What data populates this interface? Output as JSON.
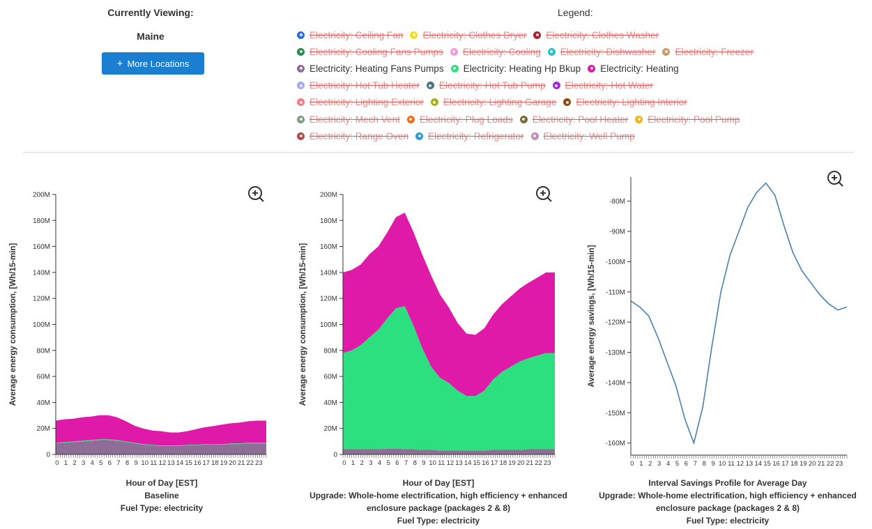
{
  "header": {
    "viewing_label": "Currently Viewing:",
    "location": "Maine",
    "more_locations_label": "More Locations",
    "more_locations_icon": "plus-icon",
    "accent_color": "#1a7fd1"
  },
  "legend": {
    "title": "Legend:",
    "rows": [
      [
        {
          "label": "Electricity: Ceiling Fan",
          "color": "#2a6fdb",
          "active": false
        },
        {
          "label": "Electricity: Clothes Dryer",
          "color": "#f2de1b",
          "active": false
        },
        {
          "label": "Electricity: Clothes Washer",
          "color": "#b01e2e",
          "active": false
        }
      ],
      [
        {
          "label": "Electricity: Cooling Fans Pumps",
          "color": "#2b8a4a",
          "active": false
        },
        {
          "label": "Electricity: Cooling",
          "color": "#f49ad8",
          "active": false
        },
        {
          "label": "Electricity: Dishwasher",
          "color": "#2bbfc9",
          "active": false
        },
        {
          "label": "Electricity: Freezer",
          "color": "#c99a6a",
          "active": false
        }
      ],
      [
        {
          "label": "Electricity: Heating Fans Pumps",
          "color": "#8e6e96",
          "active": true
        },
        {
          "label": "Electricity: Heating Hp Bkup",
          "color": "#2de07f",
          "active": true
        },
        {
          "label": "Electricity: Heating",
          "color": "#e01aa8",
          "active": true
        }
      ],
      [
        {
          "label": "Electricity: Hot Tub Heater",
          "color": "#a8a6f2",
          "active": false
        },
        {
          "label": "Electricity: Hot Tub Pump",
          "color": "#4b6f7e",
          "active": false
        },
        {
          "label": "Electricity: Hot Water",
          "color": "#a626e0",
          "active": false
        }
      ],
      [
        {
          "label": "Electricity: Lighting Exterior",
          "color": "#f27a84",
          "active": false
        },
        {
          "label": "Electricity: Lighting Garage",
          "color": "#a4b01a",
          "active": false
        },
        {
          "label": "Electricity: Lighting Interior",
          "color": "#8a4a10",
          "active": false
        }
      ],
      [
        {
          "label": "Electricity: Mech Vent",
          "color": "#7f9c84",
          "active": false
        },
        {
          "label": "Electricity: Plug Loads",
          "color": "#f26a1a",
          "active": false
        },
        {
          "label": "Electricity: Pool Heater",
          "color": "#7a6a3a",
          "active": false
        },
        {
          "label": "Electricity: Pool Pump",
          "color": "#f2b21a",
          "active": false
        }
      ],
      [
        {
          "label": "Electricity: Range Oven",
          "color": "#b04a4a",
          "active": false
        },
        {
          "label": "Electricity: Refrigerator",
          "color": "#2a9ad8",
          "active": false
        },
        {
          "label": "Electricity: Well Pump",
          "color": "#c48ab8",
          "active": false
        }
      ]
    ]
  },
  "charts": {
    "zoom_icon": "zoom-in-icon",
    "baseline": {
      "xlabel": "Hour of Day [EST]",
      "caption_lines": [
        "Baseline",
        "Fuel Type: electricity"
      ],
      "ylabel": "Average energy consumption, [Wh/15-min]"
    },
    "upgrade": {
      "xlabel": "Hour of Day [EST]",
      "caption_lines": [
        "Upgrade: Whole-home electrification, high efficiency + enhanced",
        "enclosure package (packages 2 & 8)",
        "Fuel Type: electricity"
      ],
      "ylabel": "Average energy consumption, [Wh/15-min]"
    },
    "savings": {
      "xlabel": "Interval Savings Profile for Average Day",
      "caption_lines": [
        "Upgrade: Whole-home electrification, high efficiency + enhanced",
        "enclosure package (packages 2 & 8)",
        "Fuel Type: electricity"
      ],
      "ylabel": "Average energy savings, [Wh/15-min]"
    }
  },
  "chart_data": [
    {
      "type": "area",
      "stacked": true,
      "x": [
        0,
        1,
        2,
        3,
        4,
        5,
        6,
        7,
        8,
        9,
        10,
        11,
        12,
        13,
        14,
        15,
        16,
        17,
        18,
        19,
        20,
        21,
        22,
        23,
        24
      ],
      "xticks": [
        "0",
        "1",
        "2",
        "3",
        "4",
        "5",
        "6",
        "7",
        "8",
        "9",
        "10",
        "11",
        "12",
        "13",
        "14",
        "15",
        "16",
        "17",
        "18",
        "19",
        "20",
        "21",
        "22",
        "23"
      ],
      "ylim": [
        0,
        200
      ],
      "yticks": [
        "0",
        "20M",
        "40M",
        "60M",
        "80M",
        "100M",
        "120M",
        "140M",
        "160M",
        "180M",
        "200M"
      ],
      "series": [
        {
          "name": "Electricity: Heating Fans Pumps",
          "color": "#8e6e96",
          "values": [
            8.5,
            9,
            9.5,
            10,
            10.5,
            11,
            11,
            10.5,
            9.5,
            8.5,
            7.5,
            7,
            6.5,
            6.5,
            6.5,
            7,
            7,
            7.5,
            7.5,
            7.5,
            8,
            8,
            8.5,
            8.5,
            8.5
          ]
        },
        {
          "name": "Electricity: Heating Hp Bkup",
          "color": "#2de07f",
          "values": [
            0.5,
            0.5,
            0.5,
            0.6,
            0.6,
            0.7,
            0.7,
            0.6,
            0.5,
            0.5,
            0.4,
            0.4,
            0.4,
            0.4,
            0.4,
            0.4,
            0.4,
            0.4,
            0.4,
            0.5,
            0.5,
            0.5,
            0.5,
            0.5,
            0.5
          ]
        },
        {
          "name": "Electricity: Heating",
          "color": "#e01aa8",
          "values": [
            17,
            17.5,
            17.5,
            18,
            18,
            18.5,
            18.5,
            17.5,
            15.5,
            13,
            12,
            11,
            11,
            10,
            10,
            10.5,
            12,
            13,
            14,
            15,
            15.5,
            16,
            16.5,
            17,
            17
          ]
        }
      ]
    },
    {
      "type": "area",
      "stacked": true,
      "x": [
        0,
        1,
        2,
        3,
        4,
        5,
        6,
        7,
        8,
        9,
        10,
        11,
        12,
        13,
        14,
        15,
        16,
        17,
        18,
        19,
        20,
        21,
        22,
        23,
        24
      ],
      "xticks": [
        "0",
        "1",
        "2",
        "3",
        "4",
        "5",
        "6",
        "7",
        "8",
        "9",
        "10",
        "11",
        "12",
        "13",
        "14",
        "15",
        "16",
        "17",
        "18",
        "19",
        "20",
        "21",
        "22",
        "23"
      ],
      "ylim": [
        0,
        200
      ],
      "yticks": [
        "0",
        "20M",
        "40M",
        "60M",
        "80M",
        "100M",
        "120M",
        "140M",
        "160M",
        "180M",
        "200M"
      ],
      "series": [
        {
          "name": "Electricity: Heating Fans Pumps",
          "color": "#8e6e96",
          "values": [
            4,
            4,
            4,
            4,
            4,
            4.5,
            4.5,
            4,
            4,
            3.5,
            3.5,
            3,
            3,
            3,
            3,
            3,
            3,
            3.5,
            3.5,
            3.5,
            3.5,
            4,
            4,
            4,
            4
          ]
        },
        {
          "name": "Electricity: Heating Hp Bkup",
          "color": "#2de07f",
          "values": [
            74,
            76,
            80,
            86,
            92,
            100,
            108,
            110,
            95,
            78,
            64,
            56,
            52,
            46,
            42,
            42,
            46,
            54,
            60,
            64,
            68,
            70,
            72,
            74,
            74
          ]
        },
        {
          "name": "Electricity: Heating",
          "color": "#e01aa8",
          "values": [
            62,
            62,
            62,
            64,
            64,
            66,
            70,
            72,
            72,
            72,
            70,
            64,
            58,
            52,
            48,
            47,
            48,
            50,
            52,
            54,
            56,
            58,
            60,
            62,
            62
          ]
        }
      ]
    },
    {
      "type": "line",
      "x": [
        0,
        1,
        2,
        3,
        4,
        5,
        6,
        7,
        8,
        9,
        10,
        11,
        12,
        13,
        14,
        15,
        16,
        17,
        18,
        19,
        20,
        21,
        22,
        23,
        24
      ],
      "xticks": [
        "0",
        "1",
        "2",
        "3",
        "4",
        "5",
        "6",
        "7",
        "8",
        "9",
        "10",
        "11",
        "12",
        "13",
        "14",
        "15",
        "16",
        "17",
        "18",
        "19",
        "20",
        "21",
        "22",
        "23"
      ],
      "ylim": [
        -164,
        -72
      ],
      "yticks": [
        "-160M",
        "-150M",
        "-140M",
        "-130M",
        "-120M",
        "-110M",
        "-100M",
        "-90M",
        "-80M"
      ],
      "ytick_values": [
        -160,
        -150,
        -140,
        -130,
        -120,
        -110,
        -100,
        -90,
        -80
      ],
      "series": [
        {
          "name": "Interval Savings Profile for Average Day",
          "color": "#4a7fb0",
          "values": [
            -113,
            -115,
            -118,
            -125,
            -133,
            -141,
            -152,
            -160,
            -148,
            -128,
            -110,
            -98,
            -90,
            -82,
            -77,
            -74,
            -78,
            -88,
            -97,
            -103,
            -107,
            -111,
            -114,
            -116,
            -115
          ]
        }
      ]
    }
  ]
}
